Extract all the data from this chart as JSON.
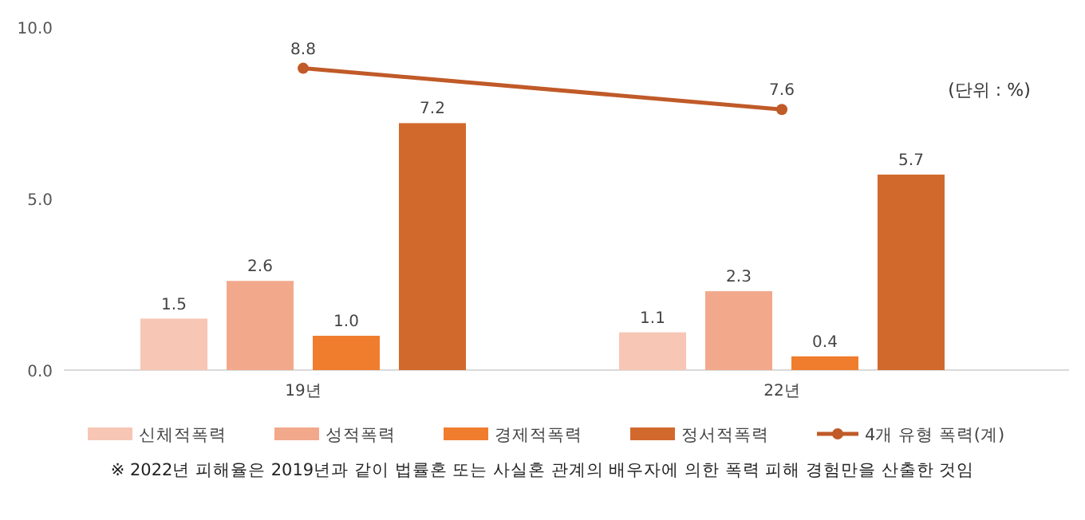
{
  "chart_data": {
    "type": "bar",
    "categories": [
      "19년",
      "22년"
    ],
    "series": [
      {
        "name": "신체적폭력",
        "color": "#f7c6b4",
        "values": [
          1.5,
          1.1
        ],
        "value_labels": [
          "1.5",
          "1.1"
        ]
      },
      {
        "name": "성적폭력",
        "color": "#f2a98b",
        "values": [
          2.6,
          2.3
        ],
        "value_labels": [
          "2.6",
          "2.3"
        ]
      },
      {
        "name": "경제적폭력",
        "color": "#f07d2e",
        "values": [
          1.0,
          0.4
        ],
        "value_labels": [
          "1.0",
          "0.4"
        ]
      },
      {
        "name": "정서적폭력",
        "color": "#d2692c",
        "values": [
          7.2,
          5.7
        ],
        "value_labels": [
          "7.2",
          "5.7"
        ]
      },
      {
        "name": "4개 유형 폭력(계)",
        "type": "line",
        "color": "#c05a28",
        "marker": "circle",
        "values": [
          8.8,
          7.6
        ],
        "value_labels": [
          "8.8",
          "7.6"
        ]
      }
    ],
    "ylim": [
      0,
      10
    ],
    "yticks": [
      {
        "value": 0,
        "label": "0.0"
      },
      {
        "value": 5,
        "label": "5.0"
      },
      {
        "value": 10,
        "label": "10.0"
      }
    ],
    "grid": false,
    "legend": "bottom",
    "annotations": [
      "(단위 : %)",
      "※ 2022년 피해율은 2019년과 같이 법률혼 또는 사실혼 관계의 배우자에 의한 폭력 피해 경험만을 산출한 것임"
    ]
  }
}
